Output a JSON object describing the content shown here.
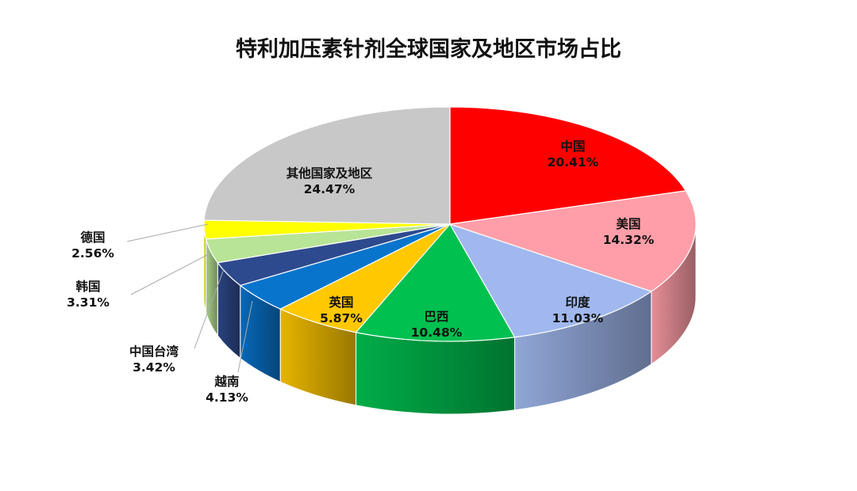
{
  "chart_data": {
    "type": "pie",
    "style": "3d",
    "title": "特利加压素针剂全球国家及地区市场占比",
    "legend": "none",
    "slices": [
      {
        "label": "中国",
        "value": 20.41,
        "text": "20.41%",
        "color": "#FF0000"
      },
      {
        "label": "美国",
        "value": 14.32,
        "text": "14.32%",
        "color": "#FF9EA8"
      },
      {
        "label": "印度",
        "value": 11.03,
        "text": "11.03%",
        "color": "#A0B8EE"
      },
      {
        "label": "巴西",
        "value": 10.48,
        "text": "10.48%",
        "color": "#00C050"
      },
      {
        "label": "英国",
        "value": 5.87,
        "text": "5.87%",
        "color": "#FFC800"
      },
      {
        "label": "越南",
        "value": 4.13,
        "text": "4.13%",
        "color": "#0874CC"
      },
      {
        "label": "中国台湾",
        "value": 3.42,
        "text": "3.42%",
        "color": "#2E4A8E"
      },
      {
        "label": "韩国",
        "value": 3.31,
        "text": "3.31%",
        "color": "#B8E496"
      },
      {
        "label": "德国",
        "value": 2.56,
        "text": "2.56%",
        "color": "#FFFF00"
      },
      {
        "label": "其他国家及地区",
        "value": 24.47,
        "text": "24.47%",
        "color": "#C8C8C8"
      }
    ]
  }
}
